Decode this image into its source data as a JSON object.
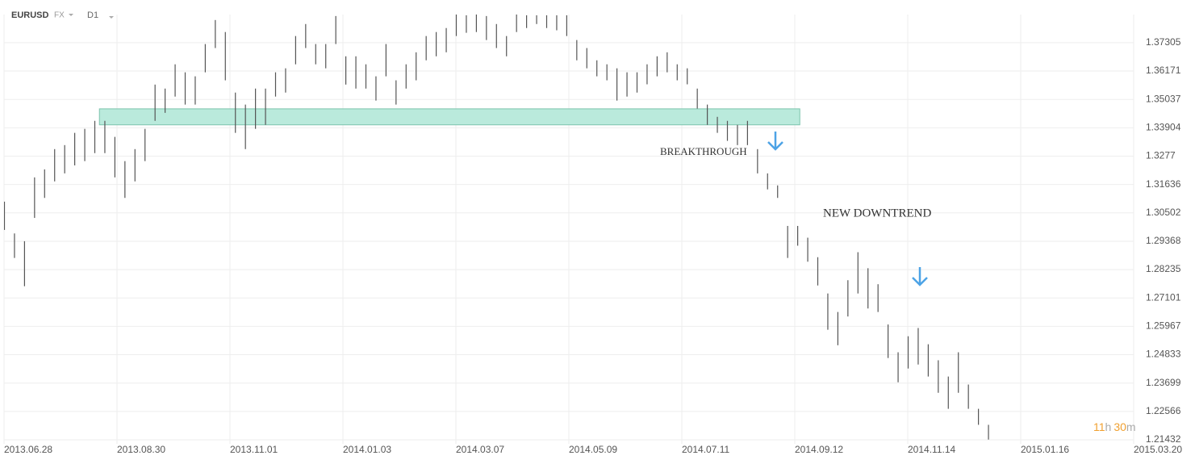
{
  "toolbar": {
    "symbol": "EURUSD",
    "market": "FX",
    "timeframe": "D1"
  },
  "countdown": [
    "11",
    "h",
    "30",
    "m"
  ],
  "chart_data": {
    "type": "ohlc",
    "annotations": [
      "BREAKTHROUGH",
      "NEW DOWNTREND"
    ],
    "zone": {
      "x": [
        38,
        317
      ],
      "y": [
        1.3402,
        1.3466
      ],
      "color": "#b3e8d8"
    },
    "color": "#555555",
    "xlim": [
      0,
      450
    ],
    "xticks": [
      {
        "value": 0,
        "label": "2013.06.28"
      },
      {
        "value": 45,
        "label": "2013.08.30"
      },
      {
        "value": 90,
        "label": "2013.11.01"
      },
      {
        "value": 135,
        "label": "2014.01.03"
      },
      {
        "value": 180,
        "label": "2014.03.07"
      },
      {
        "value": 225,
        "label": "2014.05.09"
      },
      {
        "value": 270,
        "label": "2014.07.11"
      },
      {
        "value": 315,
        "label": "2014.09.12"
      },
      {
        "value": 360,
        "label": "2014.11.14"
      },
      {
        "value": 405,
        "label": "2015.01.16"
      },
      {
        "value": 450,
        "label": "2015.03.20"
      }
    ],
    "ylim": [
      1.2127,
      1.3843
    ],
    "yticks": [
      1.37305,
      1.36171,
      1.35037,
      1.33904,
      1.3277,
      1.31636,
      1.30502,
      1.29368,
      1.28235,
      1.27101,
      1.25967,
      1.24833,
      1.23699,
      1.22566,
      1.21432
    ],
    "grid": true,
    "x": [
      0,
      4,
      8,
      12,
      16,
      20,
      24,
      28,
      32,
      36,
      40,
      44,
      48,
      52,
      56,
      60,
      64,
      68,
      72,
      76,
      80,
      84,
      88,
      92,
      96,
      100,
      104,
      108,
      112,
      116,
      120,
      124,
      128,
      132,
      136,
      140,
      144,
      148,
      152,
      156,
      160,
      164,
      168,
      172,
      176,
      180,
      184,
      188,
      192,
      196,
      200,
      204,
      208,
      212,
      216,
      220,
      224,
      228,
      232,
      236,
      240,
      244,
      248,
      252,
      256,
      260,
      264,
      268,
      272,
      276,
      280,
      284,
      288,
      292,
      296,
      300,
      304,
      308,
      312,
      316,
      320,
      324,
      328,
      332,
      336,
      340,
      344,
      348,
      352,
      356,
      360,
      364,
      368,
      372,
      376,
      380,
      384,
      388,
      392
    ],
    "high": [
      1.3095,
      1.2968,
      1.2937,
      1.3192,
      1.3224,
      1.3305,
      1.3321,
      1.337,
      1.3386,
      1.3418,
      1.3418,
      1.3354,
      1.3257,
      1.3305,
      1.3386,
      1.3563,
      1.3547,
      1.3644,
      1.3612,
      1.3596,
      1.3725,
      1.3821,
      1.3773,
      1.3531,
      1.3483,
      1.3547,
      1.3547,
      1.3612,
      1.3628,
      1.3757,
      1.3805,
      1.3725,
      1.3725,
      1.3837,
      1.3676,
      1.3676,
      1.3644,
      1.3596,
      1.3725,
      1.358,
      1.3644,
      1.3692,
      1.3757,
      1.3773,
      1.3789,
      1.3844,
      1.384,
      1.3844,
      1.3837,
      1.3805,
      1.3757,
      1.3844,
      1.384,
      1.384,
      1.384,
      1.384,
      1.384,
      1.3741,
      1.3709,
      1.366,
      1.3644,
      1.3628,
      1.3612,
      1.3612,
      1.3644,
      1.3676,
      1.3692,
      1.3644,
      1.3628,
      1.3547,
      1.3483,
      1.3434,
      1.3418,
      1.3402,
      1.3418,
      1.3305,
      1.3208,
      1.316,
      1.2998,
      1.2998,
      1.2951,
      1.2873,
      1.2728,
      1.2654,
      1.2781,
      1.2893,
      1.2829,
      1.2765,
      1.2604,
      1.2493,
      1.2557,
      1.259,
      1.2525,
      1.2461,
      1.2396,
      1.2493,
      1.2364,
      1.2267,
      1.2203
    ],
    "low": [
      1.2982,
      1.287,
      1.2757,
      1.303,
      1.311,
      1.3176,
      1.3208,
      1.324,
      1.3257,
      1.3289,
      1.3289,
      1.3192,
      1.311,
      1.3176,
      1.3257,
      1.3418,
      1.345,
      1.3515,
      1.3483,
      1.3483,
      1.3612,
      1.3709,
      1.358,
      1.337,
      1.3305,
      1.3386,
      1.3402,
      1.3515,
      1.3531,
      1.3644,
      1.3709,
      1.3644,
      1.3628,
      1.3725,
      1.3563,
      1.3547,
      1.3547,
      1.3499,
      1.3596,
      1.3483,
      1.3547,
      1.358,
      1.366,
      1.3676,
      1.3692,
      1.3757,
      1.377,
      1.3773,
      1.3741,
      1.3709,
      1.3676,
      1.3773,
      1.3789,
      1.3805,
      1.3789,
      1.378,
      1.3757,
      1.366,
      1.3628,
      1.3596,
      1.358,
      1.3499,
      1.3515,
      1.3531,
      1.3564,
      1.3596,
      1.3612,
      1.358,
      1.3564,
      1.3467,
      1.3402,
      1.337,
      1.3338,
      1.3321,
      1.3321,
      1.3208,
      1.3144,
      1.311,
      1.287,
      1.2919,
      1.2855,
      1.276,
      1.2583,
      1.2521,
      1.2636,
      1.2728,
      1.2668,
      1.2654,
      1.247,
      1.2373,
      1.2428,
      1.2444,
      1.2396,
      1.2331,
      1.2267,
      1.2331,
      1.2267,
      1.2203,
      1.2144
    ]
  }
}
